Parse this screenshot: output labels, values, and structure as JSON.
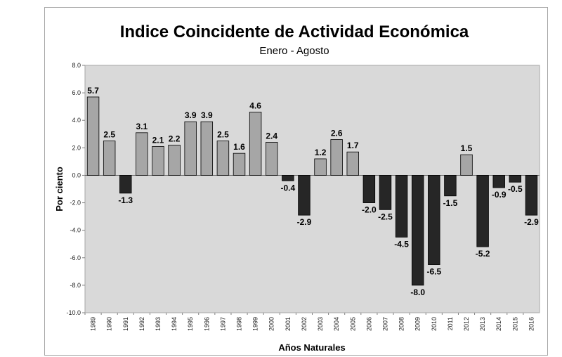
{
  "chart_data": {
    "type": "bar",
    "title": "Indice Coincidente de Actividad Económica",
    "subtitle": "Enero - Agosto",
    "xlabel": "Años Naturales",
    "ylabel": "Por ciento",
    "ylim": [
      -10.0,
      8.0
    ],
    "yticks": [
      8.0,
      6.0,
      4.0,
      2.0,
      0.0,
      -2.0,
      -4.0,
      -6.0,
      -8.0,
      -10.0
    ],
    "ytick_labels": [
      "8.0",
      "6.0",
      "4.0",
      "2.0",
      "0.0",
      "-2.0",
      "-4.0",
      "-6.0",
      "-8.0",
      "-10.0"
    ],
    "grid": false,
    "categories": [
      "1989",
      "1990",
      "1991",
      "1992",
      "1993",
      "1994",
      "1995",
      "1996",
      "1997",
      "1998",
      "1999",
      "2000",
      "2001",
      "2002",
      "2003",
      "2004",
      "2005",
      "2006",
      "2007",
      "2008",
      "2009",
      "2010",
      "2011",
      "2012",
      "2013",
      "2014",
      "2015",
      "2016"
    ],
    "values": [
      5.7,
      2.5,
      -1.3,
      3.1,
      2.1,
      2.2,
      3.9,
      3.9,
      2.5,
      1.6,
      4.6,
      2.4,
      -0.4,
      -2.9,
      1.2,
      2.6,
      1.7,
      -2.0,
      -2.5,
      -4.5,
      -8.0,
      -6.5,
      -1.5,
      1.5,
      -5.2,
      -0.9,
      -0.5,
      -2.9
    ],
    "data_labels": [
      "5.7",
      "2.5",
      "-1.3",
      "3.1",
      "2.1",
      "2.2",
      "3.9",
      "3.9",
      "2.5",
      "1.6",
      "4.6",
      "2.4",
      "-0.4",
      "-2.9",
      "1.2",
      "2.6",
      "1.7",
      "-2.0",
      "-2.5",
      "-4.5",
      "-8.0",
      "-6.5",
      "-1.5",
      "1.5",
      "-5.2",
      "-0.9",
      "-0.5",
      "-2.9"
    ],
    "colors": {
      "positive": "#a6a6a6",
      "negative": "#262626",
      "plot_background": "#d9d9d9",
      "bar_edge": "#000000"
    }
  }
}
